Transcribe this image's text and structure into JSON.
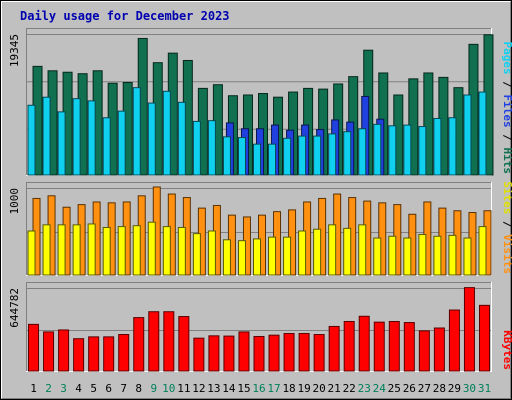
{
  "chart_data": {
    "type": "bar",
    "title": "Daily usage for December 2023",
    "categories": [
      "1",
      "2",
      "3",
      "4",
      "5",
      "6",
      "7",
      "8",
      "9",
      "10",
      "11",
      "12",
      "13",
      "14",
      "15",
      "16",
      "17",
      "18",
      "19",
      "20",
      "21",
      "22",
      "23",
      "24",
      "25",
      "26",
      "27",
      "28",
      "29",
      "30",
      "31"
    ],
    "weekend_days": [
      "2",
      "3",
      "9",
      "10",
      "16",
      "17",
      "23",
      "24",
      "30",
      "31"
    ],
    "panels": [
      {
        "id": "hits_files_pages",
        "max_label": "19345",
        "ylim": [
          0,
          19345
        ],
        "legend": [
          "Pages",
          "Files",
          "Hits"
        ],
        "series": [
          {
            "name": "Hits",
            "color": "#107050",
            "values": [
              14800,
              14200,
              14000,
              13800,
              14200,
              12500,
              12600,
              18600,
              15300,
              16600,
              15600,
              11800,
              12300,
              10800,
              10900,
              11100,
              10600,
              11300,
              11800,
              11700,
              12400,
              13400,
              17000,
              13900,
              10900,
              13100,
              13900,
              13300,
              11900,
              17800,
              19100
            ]
          },
          {
            "name": "Files",
            "color": "#2040e0",
            "values": [
              0,
              0,
              0,
              0,
              0,
              0,
              0,
              0,
              0,
              0,
              0,
              0,
              0,
              7100,
              6300,
              6300,
              6800,
              6100,
              6800,
              6200,
              7500,
              7200,
              10700,
              7600,
              0,
              0,
              0,
              0,
              0,
              0,
              0
            ]
          },
          {
            "name": "Pages",
            "color": "#10d0f0",
            "values": [
              9500,
              10600,
              8600,
              10400,
              10100,
              7800,
              8700,
              11900,
              9800,
              11400,
              9900,
              7300,
              7400,
              5200,
              5100,
              4200,
              4200,
              5000,
              5300,
              5300,
              5600,
              5900,
              6300,
              6900,
              6700,
              6800,
              6600,
              7700,
              7800,
              10900,
              11300
            ]
          }
        ]
      },
      {
        "id": "visits_sites",
        "max_label": "1000",
        "ylim": [
          0,
          1000
        ],
        "legend": [
          "Sites",
          "Visits"
        ],
        "series": [
          {
            "name": "Visits",
            "color": "#ff9010",
            "values": [
              870,
              900,
              770,
              800,
              830,
              820,
              830,
              900,
              1000,
              920,
              880,
              760,
              790,
              680,
              660,
              680,
              720,
              740,
              830,
              870,
              920,
              880,
              840,
              820,
              800,
              690,
              830,
              760,
              730,
              710,
              730
            ]
          },
          {
            "name": "Sites",
            "color": "#ffff00",
            "values": [
              500,
              570,
              570,
              570,
              580,
              540,
              550,
              560,
              600,
              550,
              540,
              470,
              500,
              400,
              390,
              410,
              430,
              430,
              500,
              520,
              570,
              530,
              570,
              420,
              440,
              420,
              460,
              440,
              450,
              420,
              550
            ]
          }
        ]
      },
      {
        "id": "kbytes",
        "max_label": "644782",
        "ylim": [
          0,
          644782
        ],
        "legend": [
          "KBytes"
        ],
        "series": [
          {
            "name": "KBytes",
            "color": "#ff0000",
            "values": [
              358000,
              300000,
              315000,
              248000,
              262000,
              262000,
              280000,
              410000,
              455000,
              455000,
              418000,
              252000,
              270000,
              268000,
              300000,
              265000,
              275000,
              288000,
              288000,
              280000,
              342000,
              380000,
              420000,
              375000,
              380000,
              372000,
              308000,
              330000,
              468000,
              640000,
              504000
            ]
          }
        ]
      }
    ]
  }
}
